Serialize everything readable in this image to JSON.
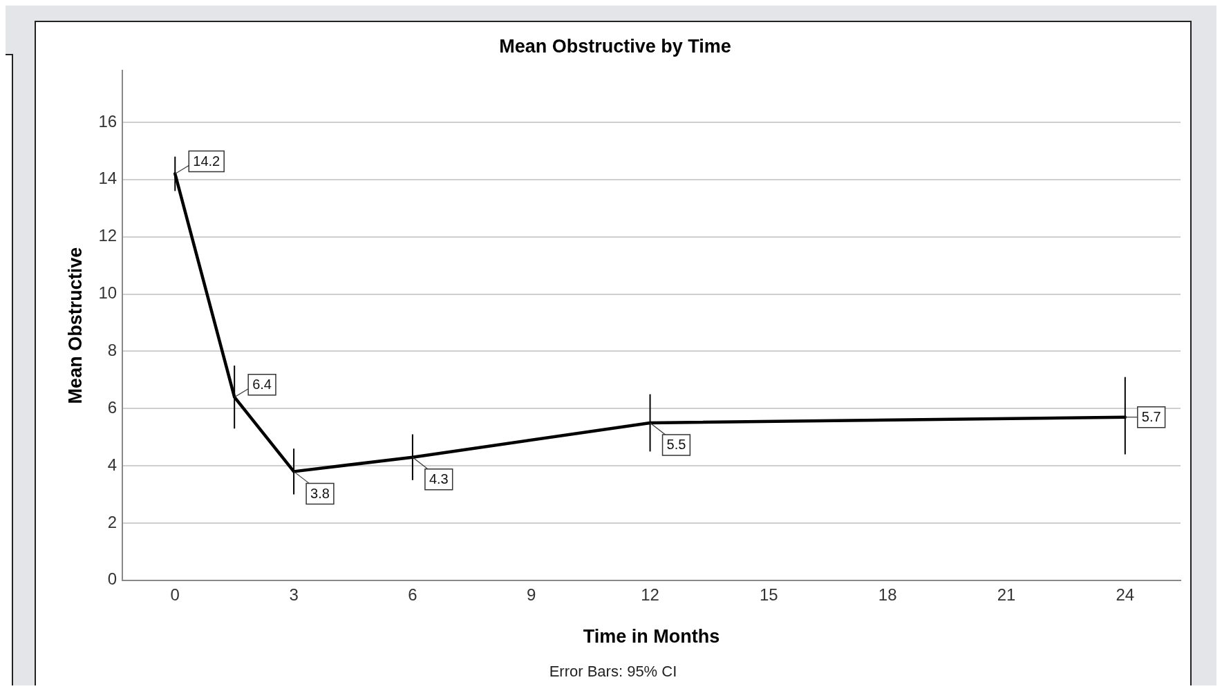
{
  "chart_data": {
    "type": "line",
    "title": "Mean Obstructive by Time",
    "xlabel": "Time in Months",
    "ylabel": "Mean Obstructive",
    "annotations": [
      "Error Bars: 95% CI"
    ],
    "x": [
      0,
      1.5,
      3,
      6,
      12,
      24
    ],
    "series": [
      {
        "color": "#000000",
        "values": [
          14.2,
          6.4,
          3.8,
          4.3,
          5.5,
          5.7
        ],
        "errors": [
          [
            13.6,
            14.8
          ],
          [
            5.3,
            7.5
          ],
          [
            3.0,
            4.6
          ],
          [
            3.5,
            5.1
          ],
          [
            4.5,
            6.5
          ],
          [
            4.4,
            7.1
          ]
        ]
      }
    ],
    "data_labels": true,
    "xlim": [
      -1.33,
      25.4
    ],
    "xticks": [
      0,
      3,
      6,
      9,
      12,
      15,
      18,
      21,
      24
    ],
    "ylim": [
      0,
      17.8
    ],
    "yticks": [
      0,
      2,
      4,
      6,
      8,
      10,
      12,
      14,
      16
    ],
    "grid": "y",
    "marker": "none",
    "line_style": "solid",
    "legend": false
  }
}
